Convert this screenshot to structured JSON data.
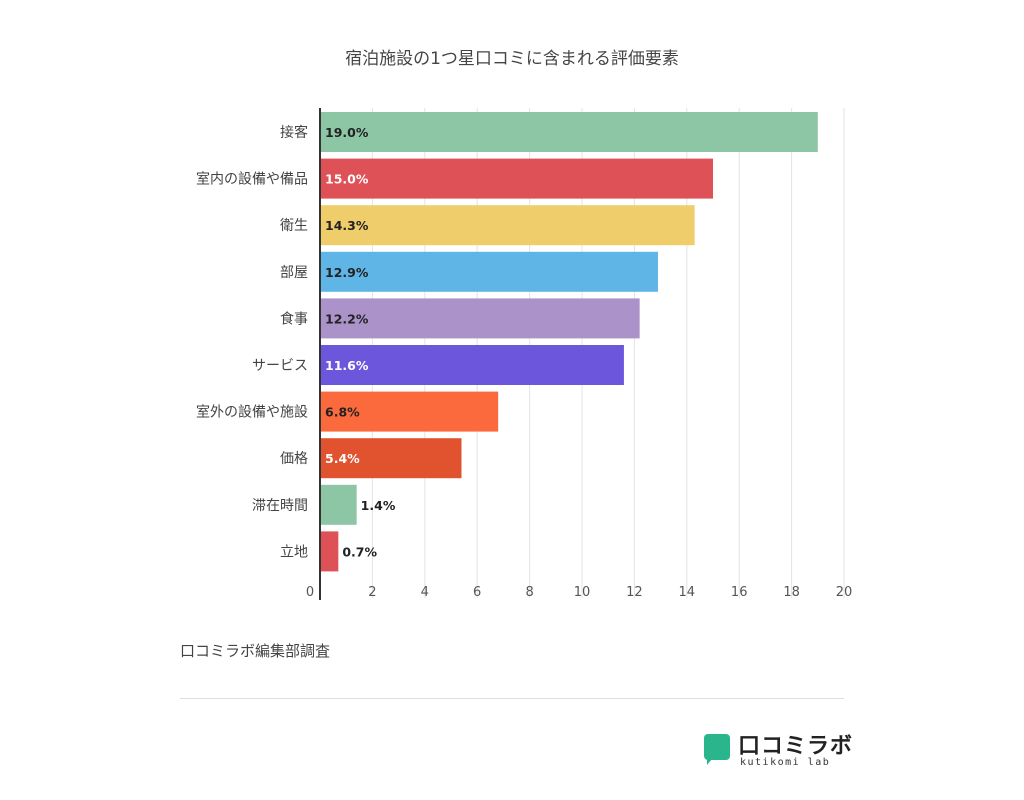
{
  "chart_data": {
    "type": "bar",
    "orientation": "horizontal",
    "title": "宿泊施設の1つ星口コミに含まれる評価要素",
    "categories": [
      "接客",
      "室内の設備や備品",
      "衛生",
      "部屋",
      "食事",
      "サービス",
      "室外の設備や施設",
      "価格",
      "滞在時間",
      "立地"
    ],
    "values": [
      19.0,
      15.0,
      14.3,
      12.9,
      12.2,
      11.6,
      6.8,
      5.4,
      1.4,
      0.7
    ],
    "value_labels": [
      "19.0%",
      "15.0%",
      "14.3%",
      "12.9%",
      "12.2%",
      "11.6%",
      "6.8%",
      "5.4%",
      "1.4%",
      "0.7%"
    ],
    "bar_colors": [
      "#8dc6a5",
      "#dd5157",
      "#efcd6b",
      "#5fb6e6",
      "#ab92c9",
      "#6c56dc",
      "#fb6a3c",
      "#e1522e",
      "#8dc6a5",
      "#dd5157"
    ],
    "label_colors": [
      "#222222",
      "#ffffff",
      "#222222",
      "#222222",
      "#222222",
      "#ffffff",
      "#222222",
      "#ffffff",
      "#222222",
      "#222222"
    ],
    "xlim": [
      0,
      20
    ],
    "xticks": [
      "0",
      "2",
      "4",
      "6",
      "8",
      "10",
      "12",
      "14",
      "16",
      "18",
      "20"
    ],
    "grid": true,
    "xlabel": "",
    "ylabel": ""
  },
  "footnote": "口コミラボ編集部調査",
  "brand": {
    "name": "口コミラボ",
    "sub": "kutikomi lab",
    "mark_color": "#2bb58d"
  }
}
